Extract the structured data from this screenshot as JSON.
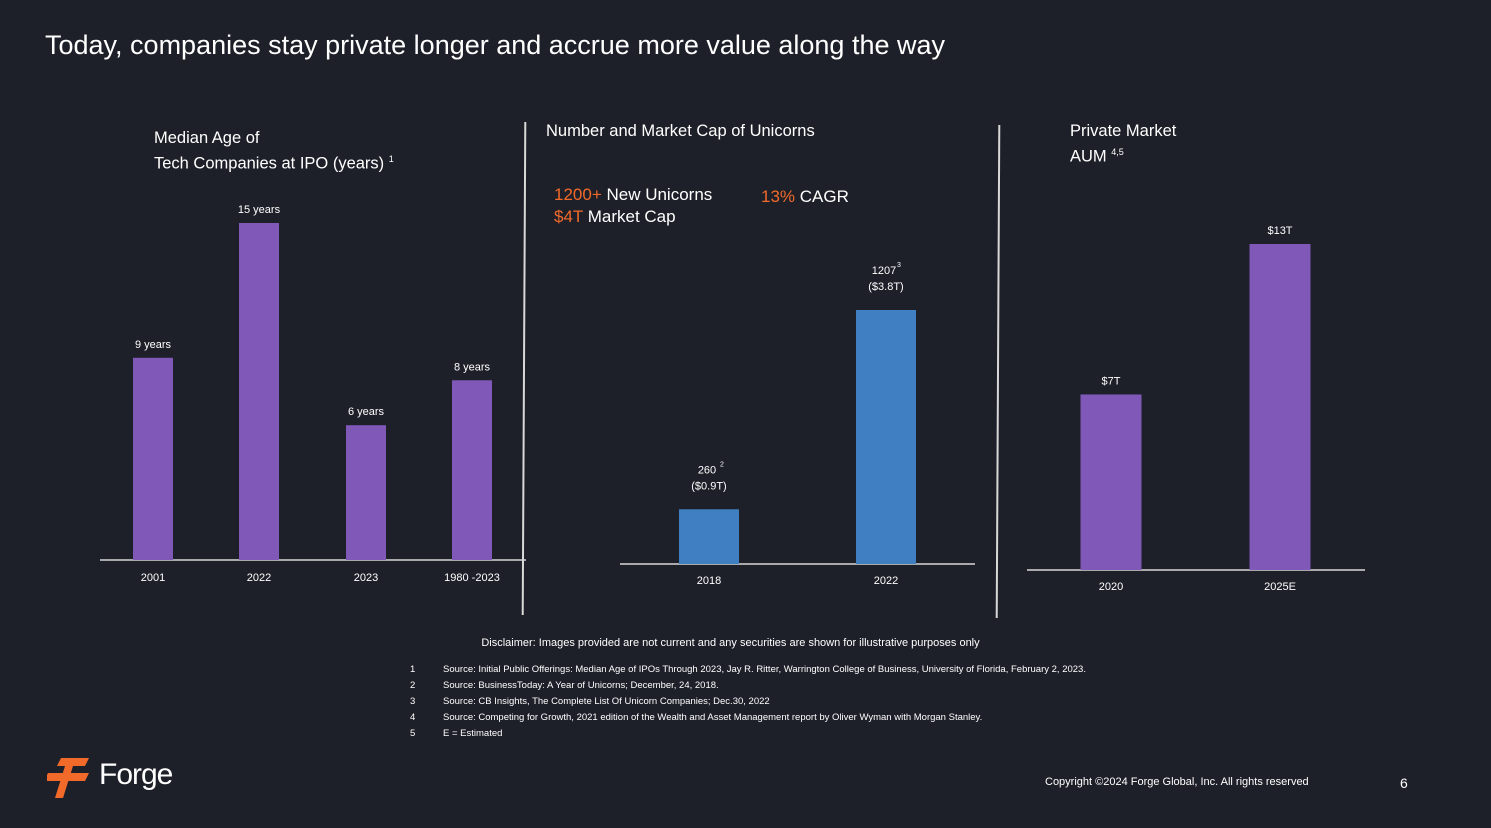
{
  "title": "Today, companies stay private longer and accrue more value along the way",
  "panels": {
    "median_age": {
      "title_line1": "Median Age of",
      "title_line2": "Tech Companies at IPO (years)",
      "title_sup": "1"
    },
    "unicorns": {
      "title": "Number and Market Cap of Unicorns",
      "highlight1_value": "1200+",
      "highlight1_text": " New Unicorns",
      "highlight2_value": "$4T",
      "highlight2_text": " Market Cap",
      "cagr_value": "13%",
      "cagr_text": " CAGR"
    },
    "aum": {
      "title_line1": "Private Market",
      "title_line2": "AUM",
      "title_sup": "4,5"
    }
  },
  "colors": {
    "background": "#1e2029",
    "purple_bar": "#7f58b8",
    "blue_bar": "#3f7fc2",
    "accent_orange": "#f26a2a",
    "axis": "#d8d8d8"
  },
  "chart_data": [
    {
      "type": "bar",
      "title": "Median Age of Tech Companies at IPO (years)",
      "categories": [
        "2001",
        "2022",
        "2023",
        "1980 -2023"
      ],
      "values": [
        9,
        15,
        6,
        8
      ],
      "data_labels": [
        "9 years",
        "15 years",
        "6 years",
        "8 years"
      ],
      "ylim": [
        0,
        15
      ]
    },
    {
      "type": "bar",
      "title": "Number and Market Cap of Unicorns",
      "categories": [
        "2018",
        "2022"
      ],
      "values": [
        260,
        1207
      ],
      "data_labels": [
        "260",
        "1207"
      ],
      "data_labels_sub": [
        "($0.9T)",
        "($3.8T)"
      ],
      "label_sups": [
        "2",
        "3"
      ],
      "ylim": [
        0,
        1207
      ]
    },
    {
      "type": "bar",
      "title": "Private Market AUM",
      "categories": [
        "2020",
        "2025E"
      ],
      "values": [
        7,
        13
      ],
      "data_labels": [
        "$7T",
        "$13T"
      ],
      "ylim": [
        0,
        13
      ]
    }
  ],
  "disclaimer": "Disclaimer: Images provided are not current and any securities are shown for illustrative purposes only",
  "footnotes": [
    {
      "num": "1",
      "text": "Source: Initial Public Offerings: Median Age of IPOs Through 2023, Jay R. Ritter, Warrington College of Business, University of Florida, February 2, 2023."
    },
    {
      "num": "2",
      "text": "Source: BusinessToday: A Year of Unicorns; December, 24, 2018."
    },
    {
      "num": "3",
      "text": "Source: CB Insights, The Complete List Of Unicorn Companies; Dec.30, 2022"
    },
    {
      "num": "4",
      "text": "Source: Competing for Growth, 2021 edition of the Wealth and Asset Management report by Oliver Wyman with Morgan Stanley."
    },
    {
      "num": "5",
      "text": "E = Estimated"
    }
  ],
  "brand": {
    "name": "Forge",
    "logo_icon": "forge-logo-icon"
  },
  "copyright": "Copyright ©2024 Forge Global, Inc. All rights reserved",
  "page_number": "6"
}
